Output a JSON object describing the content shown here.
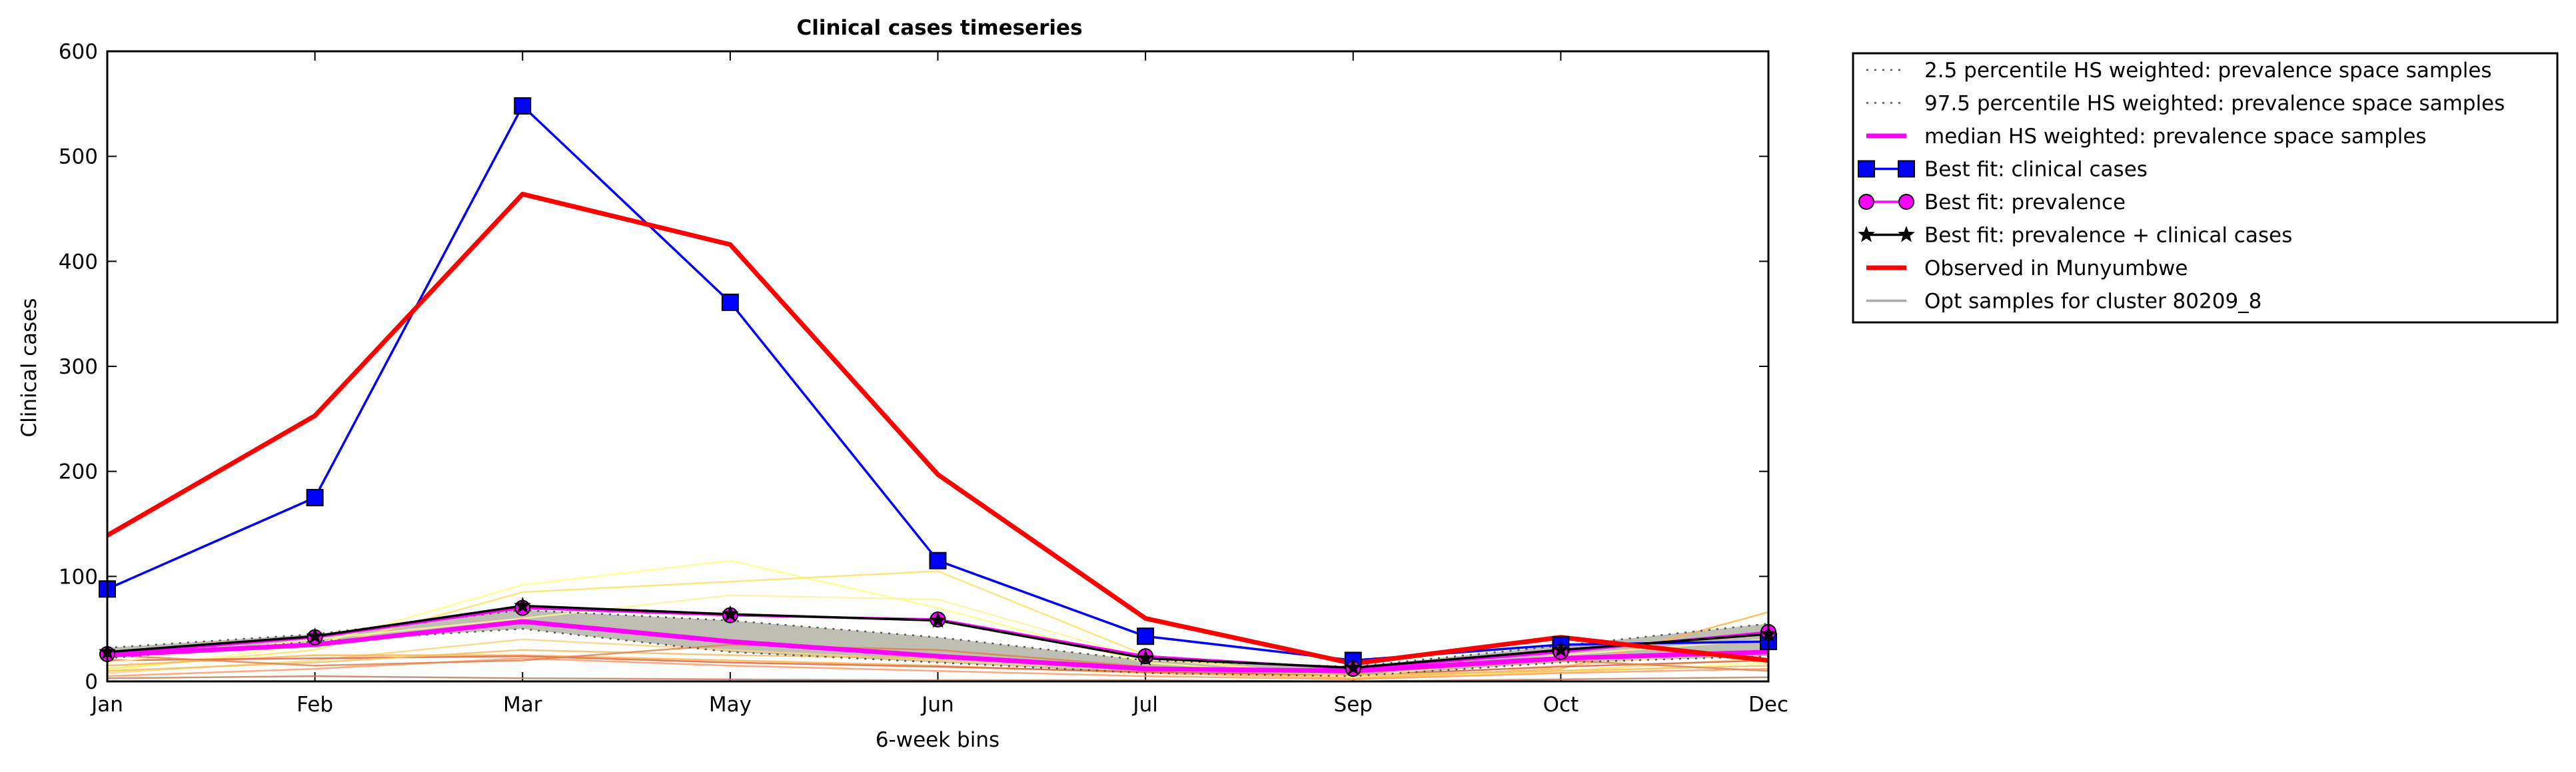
{
  "chart_data": {
    "type": "line",
    "title": "Clinical cases timeseries",
    "xlabel": "6-week bins",
    "ylabel": "Clinical cases",
    "categories": [
      "Jan",
      "Feb",
      "Mar",
      "May",
      "Jun",
      "Jul",
      "Sep",
      "Oct",
      "Dec"
    ],
    "ylim": [
      0,
      600
    ],
    "yticks": [
      0,
      100,
      200,
      300,
      400,
      500,
      600
    ],
    "legend_position": "outside-top-right",
    "band": {
      "lower": [
        22,
        38,
        50,
        28,
        18,
        8,
        5,
        18,
        24
      ],
      "upper": [
        32,
        45,
        68,
        58,
        42,
        20,
        14,
        34,
        55
      ],
      "color": "#a8a89a"
    },
    "samples": {
      "colors": [
        "#ffff80",
        "#ffe066",
        "#ffd27f",
        "#ffb347",
        "#ff9966",
        "#e06040",
        "#c08060",
        "#fff2a0",
        "#f0c060",
        "#e08050"
      ],
      "series": [
        [
          10,
          35,
          92,
          115,
          70,
          18,
          3,
          8,
          18
        ],
        [
          12,
          30,
          85,
          95,
          105,
          25,
          2,
          10,
          22
        ],
        [
          8,
          20,
          40,
          30,
          20,
          10,
          4,
          15,
          30
        ],
        [
          15,
          25,
          25,
          20,
          15,
          8,
          3,
          12,
          66
        ],
        [
          5,
          12,
          22,
          15,
          10,
          5,
          2,
          8,
          12
        ],
        [
          20,
          22,
          24,
          18,
          14,
          9,
          6,
          14,
          20
        ],
        [
          3,
          5,
          3,
          2,
          1,
          1,
          0,
          2,
          4
        ],
        [
          18,
          40,
          60,
          82,
          78,
          22,
          4,
          25,
          40
        ],
        [
          10,
          18,
          30,
          25,
          22,
          12,
          6,
          10,
          15
        ],
        [
          25,
          15,
          20,
          35,
          30,
          14,
          8,
          20,
          10
        ]
      ]
    },
    "series": [
      {
        "name": "2.5 percentile HS weighted: prevalence space samples",
        "color": "#555555",
        "style": "dotted",
        "values": [
          22,
          38,
          50,
          28,
          18,
          8,
          5,
          18,
          24
        ]
      },
      {
        "name": "97.5 percentile HS weighted: prevalence space samples",
        "color": "#555555",
        "style": "dotted",
        "values": [
          32,
          45,
          68,
          58,
          42,
          20,
          14,
          34,
          55
        ]
      },
      {
        "name": "median HS weighted: prevalence space samples",
        "color": "#ff00ff",
        "style": "solid-thick",
        "values": [
          25,
          35,
          57,
          38,
          24,
          12,
          10,
          22,
          28
        ]
      },
      {
        "name": "Best fit: clinical cases",
        "color": "#0000ff",
        "style": "solid-square",
        "values": [
          88,
          175,
          548,
          361,
          115,
          43,
          20,
          35,
          38
        ]
      },
      {
        "name": "Best fit: prevalence",
        "color": "#ff00ff",
        "style": "solid-circle",
        "values": [
          26,
          42,
          70,
          63,
          59,
          24,
          12,
          28,
          47
        ]
      },
      {
        "name": "Best fit: prevalence + clinical cases",
        "color": "#000000",
        "style": "solid-star",
        "values": [
          28,
          43,
          72,
          64,
          58,
          22,
          13,
          30,
          45
        ]
      },
      {
        "name": "Observed in Munyumbwe",
        "color": "#ff0000",
        "style": "solid-thick",
        "values": [
          139,
          253,
          464,
          416,
          197,
          60,
          17,
          42,
          20
        ]
      },
      {
        "name": "Opt samples for cluster 80209_8",
        "color": "#aaaaaa",
        "style": "solid",
        "values": null
      }
    ]
  }
}
